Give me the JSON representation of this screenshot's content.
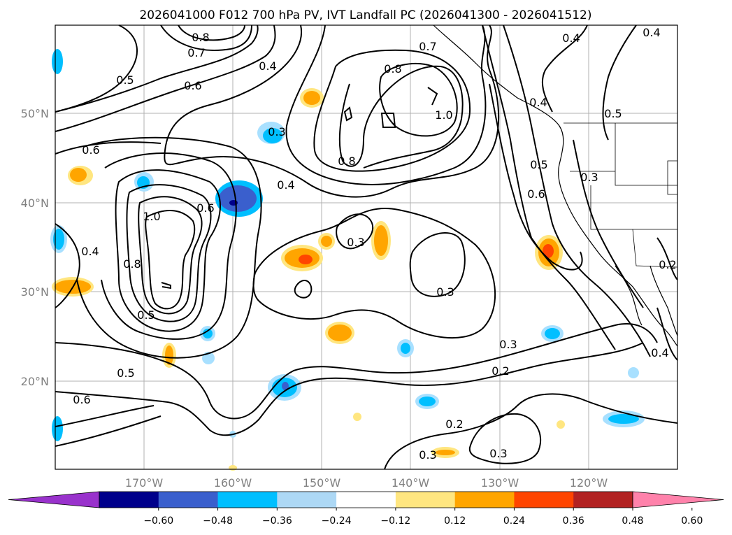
{
  "title": "2026041000 F012 700 hPa PV, IVT Landfall PC (2026041300 - 2026041512)",
  "map": {
    "lat_axis_labels": [
      "50°N",
      "40°N",
      "30°N",
      "20°N"
    ],
    "lon_axis_labels": [
      "170°W",
      "160°W",
      "150°W",
      "140°W",
      "130°W",
      "120°W"
    ],
    "contour_labels": [
      "0.8",
      "0.7",
      "0.5",
      "0.6",
      "0.4",
      "0.7",
      "0.8",
      "0.4",
      "0.4",
      "0.3",
      "1.0",
      "0.8",
      "0.4",
      "0.5",
      "0.6",
      "0.4",
      "0.5",
      "0.3",
      "0.6",
      "1.0",
      "0.6",
      "0.3",
      "0.4",
      "0.8",
      "0.5",
      "0.3",
      "0.2",
      "0.3",
      "0.2",
      "0.4",
      "0.5",
      "0.6",
      "0.2",
      "0.3",
      "0.3"
    ],
    "colors": {
      "land_coast": "#000000",
      "grid": "#b0b0b0",
      "contour": "#000000",
      "pos_1": "#ffe680",
      "pos_2": "#ffa500",
      "pos_3": "#ff4500",
      "neg_1": "#a8e0ff",
      "neg_2": "#00bfff",
      "neg_3": "#3a5fcd",
      "neg_4": "#00008b"
    }
  },
  "colorbar": {
    "colors": [
      "#9932cc",
      "#00008b",
      "#3a5fcd",
      "#00bfff",
      "#add8f5",
      "#ffffff",
      "#ffe680",
      "#ffa500",
      "#ff4500",
      "#b22222",
      "#ff82ab"
    ],
    "tick_labels": [
      "−0.60",
      "−0.48",
      "−0.36",
      "−0.24",
      "−0.12",
      "0.12",
      "0.24",
      "0.36",
      "0.48",
      "0.60"
    ]
  }
}
